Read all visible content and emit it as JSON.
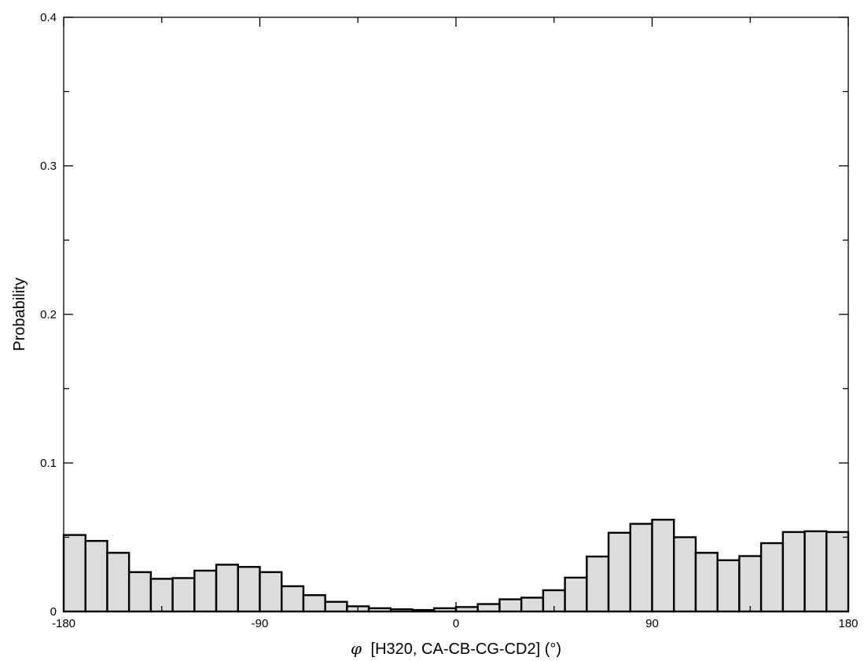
{
  "chart_data": {
    "type": "bar",
    "subtype": "histogram",
    "xlabel_symbol": "φ",
    "xlabel": "[H320, CA-CB-CG-CD2] (°)",
    "ylabel": "Probability",
    "xlim": [
      -180,
      180
    ],
    "ylim": [
      0,
      0.4
    ],
    "xticks": [
      -180,
      -90,
      0,
      90,
      180
    ],
    "xtick_labels": [
      "-180",
      "-90",
      "0",
      "90",
      "180"
    ],
    "yticks": [
      0,
      0.1,
      0.2,
      0.3,
      0.4
    ],
    "ytick_labels": [
      "0",
      "0.1",
      "0.2",
      "0.3",
      "0.4"
    ],
    "grid": false,
    "legend": false,
    "bar_fill": "#dcdcdc",
    "bar_edge": "#000000",
    "bin_width": 10,
    "bin_edges_start": -180,
    "values": [
      0.0515,
      0.0475,
      0.0395,
      0.0265,
      0.022,
      0.0225,
      0.0275,
      0.0315,
      0.03,
      0.0265,
      0.017,
      0.011,
      0.0065,
      0.0035,
      0.0022,
      0.0015,
      0.001,
      0.0022,
      0.003,
      0.005,
      0.0082,
      0.0093,
      0.0143,
      0.0228,
      0.037,
      0.053,
      0.059,
      0.0618,
      0.05,
      0.0395,
      0.0345,
      0.0373,
      0.046,
      0.0535,
      0.054,
      0.0535
    ]
  }
}
